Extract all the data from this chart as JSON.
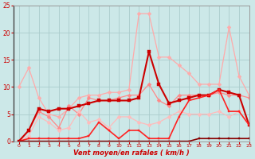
{
  "x": [
    0,
    1,
    2,
    3,
    4,
    5,
    6,
    7,
    8,
    9,
    10,
    11,
    12,
    13,
    14,
    15,
    16,
    17,
    18,
    19,
    20,
    21,
    22,
    23
  ],
  "series": [
    {
      "color": "#ffaaaa",
      "lw": 0.9,
      "marker": "D",
      "ms": 2.5,
      "y": [
        10.0,
        13.5,
        8.0,
        5.0,
        4.5,
        6.0,
        8.0,
        8.5,
        8.5,
        9.0,
        9.0,
        9.5,
        23.5,
        23.5,
        15.5,
        15.5,
        14.0,
        12.5,
        10.5,
        10.5,
        10.5,
        21.0,
        12.0,
        8.5
      ]
    },
    {
      "color": "#ff8888",
      "lw": 0.9,
      "marker": "D",
      "ms": 2.5,
      "y": [
        0.0,
        2.0,
        5.5,
        4.5,
        2.5,
        6.5,
        5.0,
        8.0,
        7.5,
        7.5,
        8.0,
        8.5,
        8.5,
        10.5,
        7.5,
        6.5,
        8.5,
        8.5,
        8.5,
        8.5,
        9.0,
        8.5,
        8.5,
        8.0
      ]
    },
    {
      "color": "#ffbbbb",
      "lw": 0.9,
      "marker": "D",
      "ms": 2.5,
      "y": [
        0.0,
        1.0,
        4.5,
        3.5,
        2.0,
        2.5,
        5.5,
        3.5,
        4.0,
        2.5,
        4.5,
        4.5,
        3.5,
        3.0,
        3.5,
        4.5,
        5.5,
        5.0,
        5.0,
        5.0,
        5.5,
        4.5,
        5.5,
        3.0
      ]
    },
    {
      "color": "#cc0000",
      "lw": 1.5,
      "marker": "s",
      "ms": 2.5,
      "y": [
        0.0,
        2.0,
        6.0,
        5.5,
        6.0,
        6.0,
        6.5,
        7.0,
        7.5,
        7.5,
        7.5,
        7.5,
        8.0,
        16.5,
        10.5,
        7.0,
        7.5,
        8.0,
        8.5,
        8.5,
        9.5,
        9.0,
        8.5,
        3.0
      ]
    },
    {
      "color": "#ff2222",
      "lw": 1.2,
      "marker": "s",
      "ms": 2.0,
      "y": [
        0.0,
        0.5,
        0.5,
        0.5,
        0.5,
        0.5,
        0.5,
        1.0,
        3.5,
        2.0,
        0.5,
        2.0,
        2.0,
        0.5,
        0.5,
        0.5,
        4.5,
        7.5,
        8.0,
        8.5,
        9.5,
        5.5,
        5.5,
        3.0
      ]
    },
    {
      "color": "#880000",
      "lw": 1.2,
      "marker": "s",
      "ms": 1.5,
      "y": [
        0.0,
        0.0,
        0.0,
        0.0,
        0.0,
        0.0,
        0.0,
        0.0,
        0.0,
        0.0,
        0.0,
        0.0,
        0.0,
        0.0,
        0.0,
        0.0,
        0.0,
        0.0,
        0.5,
        0.5,
        0.5,
        0.5,
        0.5,
        0.5
      ]
    }
  ],
  "xlabel": "Vent moyen/en rafales ( km/h )",
  "xlim": [
    -0.5,
    23
  ],
  "ylim": [
    0,
    25
  ],
  "yticks": [
    0,
    5,
    10,
    15,
    20,
    25
  ],
  "xticks": [
    0,
    1,
    2,
    3,
    4,
    5,
    6,
    7,
    8,
    9,
    10,
    11,
    12,
    13,
    14,
    15,
    16,
    17,
    18,
    19,
    20,
    21,
    22,
    23
  ],
  "bg_color": "#cce8e8",
  "grid_color": "#aacccc",
  "tick_color": "#cc0000",
  "label_color": "#cc0000"
}
